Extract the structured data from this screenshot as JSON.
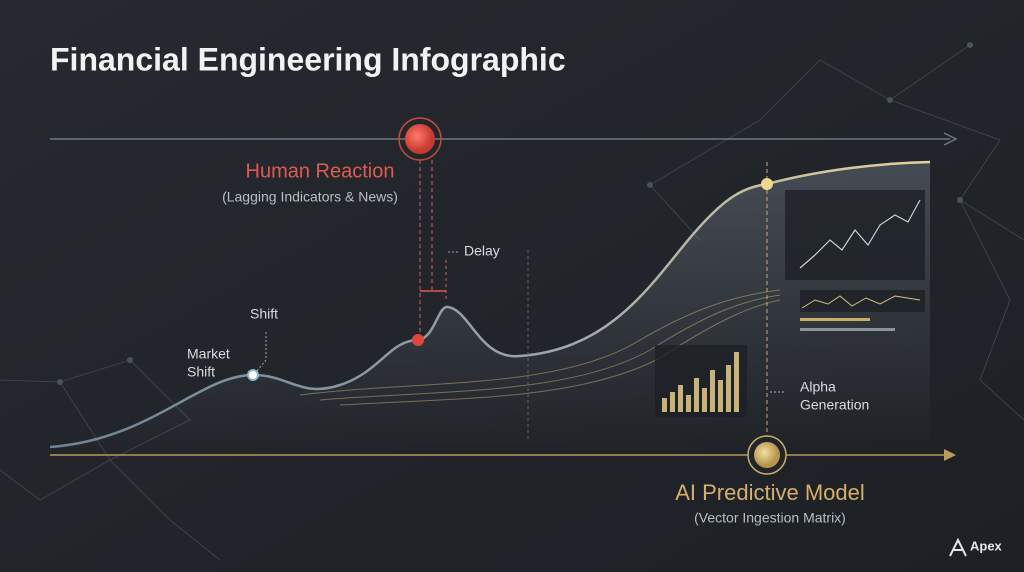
{
  "header": {
    "title": "Financial Engineering Infographic"
  },
  "human_reaction": {
    "title": "Human Reaction",
    "subtitle": "(Lagging Indicators & News)",
    "delay": "Delay"
  },
  "market": {
    "shift": "Shift",
    "market_shift_line1": "Market",
    "market_shift_line2": "Shift"
  },
  "ai_model": {
    "title": "AI Predictive Model",
    "subtitle": "(Vector Ingestion Matrix)",
    "alpha_line1": "Alpha",
    "alpha_line2": "Generation"
  },
  "brand": {
    "name": "Apex"
  }
}
